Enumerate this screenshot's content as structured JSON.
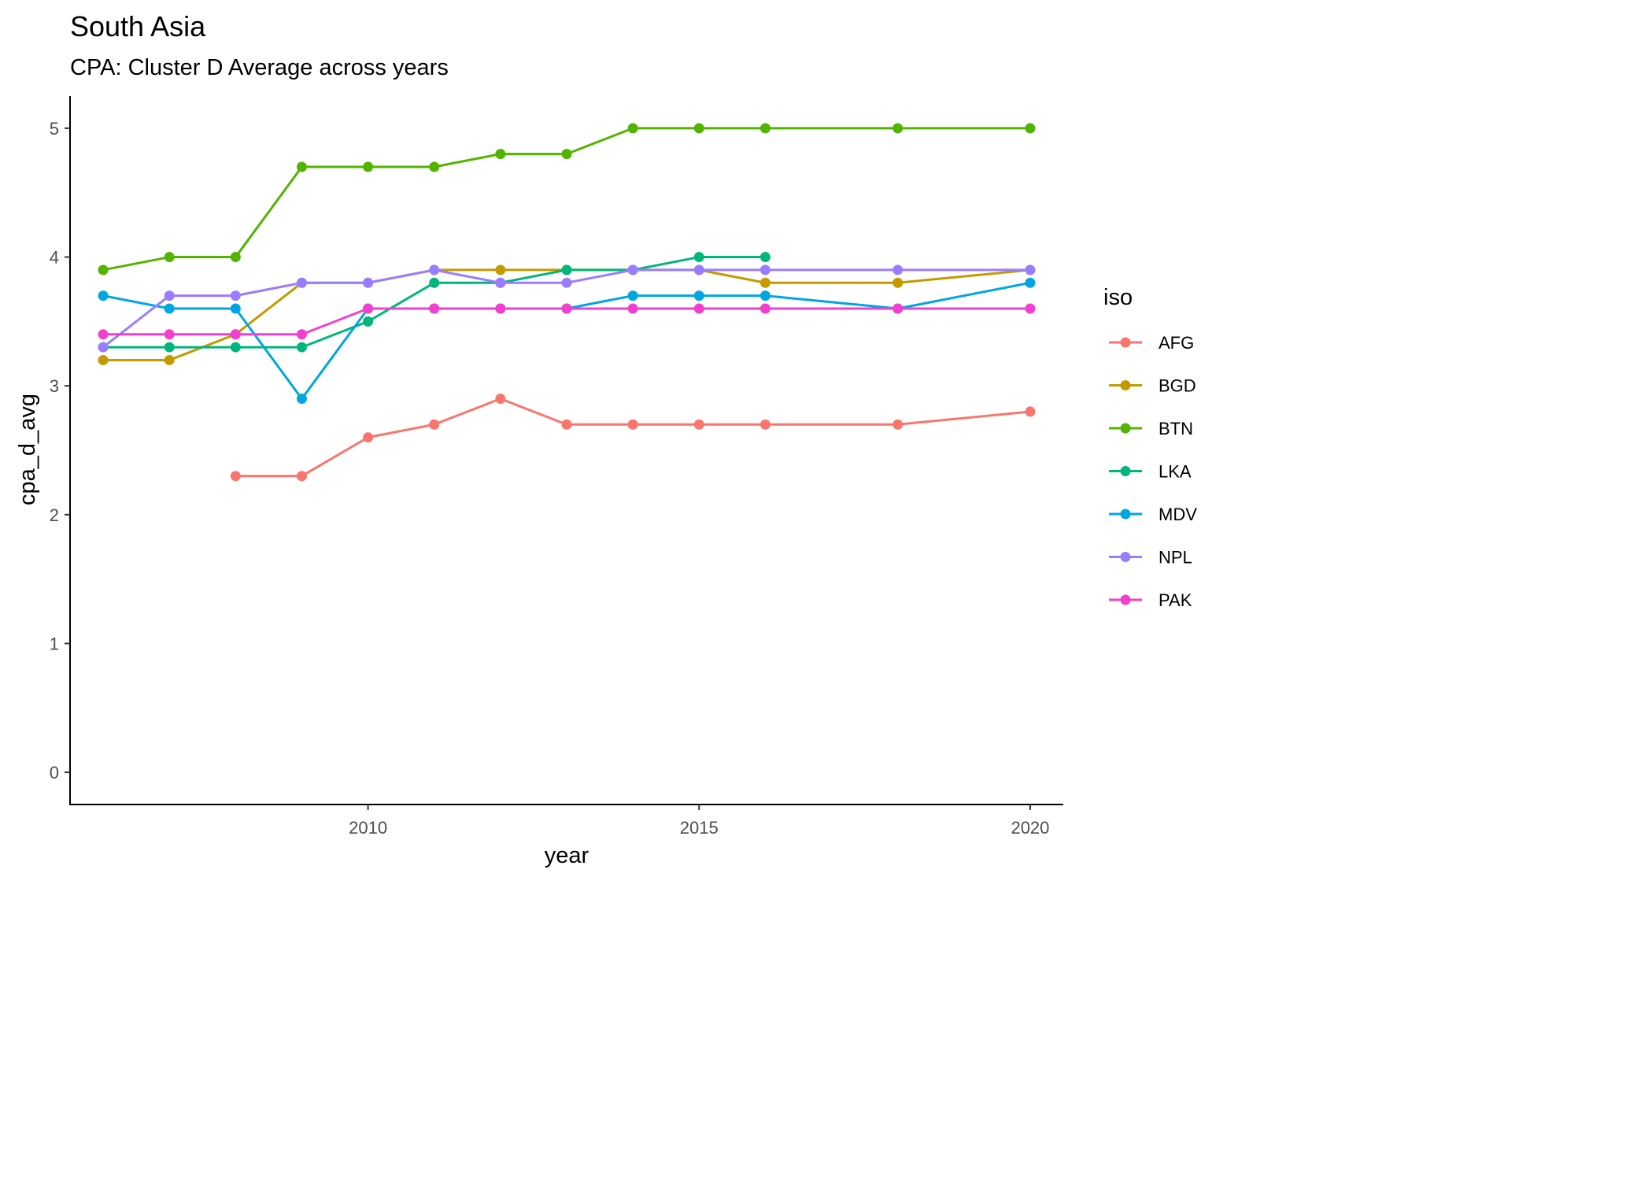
{
  "chart_data": {
    "type": "line",
    "title": "South Asia",
    "subtitle": "CPA: Cluster D Average across years",
    "xlabel": "year",
    "ylabel": "cpa_d_avg",
    "xlim": [
      2005.5,
      2020.5
    ],
    "ylim": [
      -0.25,
      5.25
    ],
    "x_ticks": [
      2010,
      2015,
      2020
    ],
    "y_ticks": [
      0,
      1,
      2,
      3,
      4,
      5
    ],
    "grid": false,
    "legend": {
      "title": "iso",
      "position": "right"
    },
    "series": [
      {
        "name": "AFG",
        "color": "#F8766D",
        "x": [
          2008,
          2009,
          2010,
          2011,
          2012,
          2013,
          2014,
          2015,
          2016,
          2018,
          2020
        ],
        "y": [
          2.3,
          2.3,
          2.6,
          2.7,
          2.9,
          2.7,
          2.7,
          2.7,
          2.7,
          2.7,
          2.8
        ]
      },
      {
        "name": "BGD",
        "color": "#C49A00",
        "x": [
          2006,
          2007,
          2008,
          2009,
          2010,
          2011,
          2012,
          2013,
          2014,
          2015,
          2016,
          2018,
          2020
        ],
        "y": [
          3.2,
          3.2,
          3.4,
          3.8,
          3.8,
          3.9,
          3.9,
          3.9,
          3.9,
          3.9,
          3.8,
          3.8,
          3.9
        ]
      },
      {
        "name": "BTN",
        "color": "#53B400",
        "x": [
          2006,
          2007,
          2008,
          2009,
          2010,
          2011,
          2012,
          2013,
          2014,
          2015,
          2016,
          2018,
          2020
        ],
        "y": [
          3.9,
          4.0,
          4.0,
          4.7,
          4.7,
          4.7,
          4.8,
          4.8,
          5.0,
          5.0,
          5.0,
          5.0,
          5.0
        ]
      },
      {
        "name": "LKA",
        "color": "#00B67A",
        "x": [
          2006,
          2007,
          2008,
          2009,
          2010,
          2011,
          2012,
          2013,
          2014,
          2015,
          2016
        ],
        "y": [
          3.3,
          3.3,
          3.3,
          3.3,
          3.5,
          3.8,
          3.8,
          3.9,
          3.9,
          4.0,
          4.0
        ]
      },
      {
        "name": "MDV",
        "color": "#00A6E0",
        "x": [
          2006,
          2007,
          2008,
          2009,
          2010,
          2011,
          2012,
          2013,
          2014,
          2015,
          2016,
          2018,
          2020
        ],
        "y": [
          3.7,
          3.6,
          3.6,
          2.9,
          3.6,
          3.6,
          3.6,
          3.6,
          3.7,
          3.7,
          3.7,
          3.6,
          3.8
        ]
      },
      {
        "name": "NPL",
        "color": "#9A7CFF",
        "x": [
          2006,
          2007,
          2008,
          2009,
          2010,
          2011,
          2012,
          2013,
          2014,
          2015,
          2016,
          2018,
          2020
        ],
        "y": [
          3.3,
          3.7,
          3.7,
          3.8,
          3.8,
          3.9,
          3.8,
          3.8,
          3.9,
          3.9,
          3.9,
          3.9,
          3.9
        ]
      },
      {
        "name": "PAK",
        "color": "#F23FD0",
        "x": [
          2006,
          2007,
          2008,
          2009,
          2010,
          2011,
          2012,
          2013,
          2014,
          2015,
          2016,
          2018,
          2020
        ],
        "y": [
          3.4,
          3.4,
          3.4,
          3.4,
          3.6,
          3.6,
          3.6,
          3.6,
          3.6,
          3.6,
          3.6,
          3.6,
          3.6
        ]
      }
    ]
  }
}
